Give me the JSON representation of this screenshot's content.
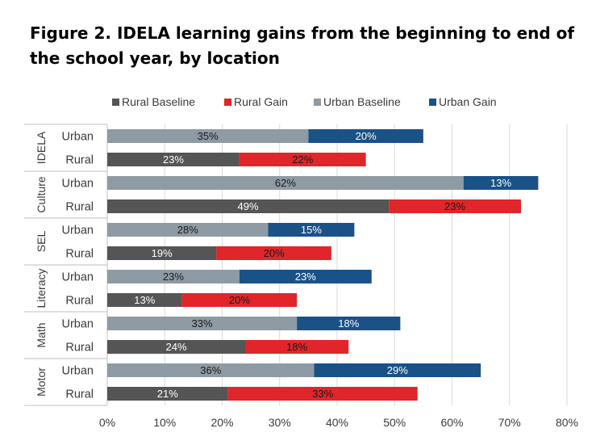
{
  "title": "Figure 2. IDELA learning gains from the beginning to end of the school year, by  location",
  "chart_data": {
    "type": "bar",
    "orientation": "horizontal",
    "stacked": true,
    "xlim": [
      0,
      80
    ],
    "x_ticks": [
      "0%",
      "10%",
      "20%",
      "30%",
      "40%",
      "50%",
      "60%",
      "70%",
      "80%"
    ],
    "grid": true,
    "legend_position": "top",
    "legend": [
      {
        "name": "Rural Baseline",
        "color": "#555555"
      },
      {
        "name": "Rural Gain",
        "color": "#e0262a"
      },
      {
        "name": "Urban Baseline",
        "color": "#8e9aa4"
      },
      {
        "name": "Urban Gain",
        "color": "#1a5187"
      }
    ],
    "groups": [
      {
        "name": "IDELA",
        "rows": [
          {
            "label": "Urban",
            "baseline": 35,
            "gain": 20,
            "baseline_label": "35%",
            "gain_label": "20%"
          },
          {
            "label": "Rural",
            "baseline": 23,
            "gain": 22,
            "baseline_label": "23%",
            "gain_label": "22%"
          }
        ]
      },
      {
        "name": "Culture",
        "rows": [
          {
            "label": "Urban",
            "baseline": 62,
            "gain": 13,
            "baseline_label": "62%",
            "gain_label": "13%"
          },
          {
            "label": "Rural",
            "baseline": 49,
            "gain": 23,
            "baseline_label": "49%",
            "gain_label": "23%"
          }
        ]
      },
      {
        "name": "SEL",
        "rows": [
          {
            "label": "Urban",
            "baseline": 28,
            "gain": 15,
            "baseline_label": "28%",
            "gain_label": "15%"
          },
          {
            "label": "Rural",
            "baseline": 19,
            "gain": 20,
            "baseline_label": "19%",
            "gain_label": "20%"
          }
        ]
      },
      {
        "name": "Literacy",
        "rows": [
          {
            "label": "Urban",
            "baseline": 23,
            "gain": 23,
            "baseline_label": "23%",
            "gain_label": "23%"
          },
          {
            "label": "Rural",
            "baseline": 13,
            "gain": 20,
            "baseline_label": "13%",
            "gain_label": "20%"
          }
        ]
      },
      {
        "name": "Math",
        "rows": [
          {
            "label": "Urban",
            "baseline": 33,
            "gain": 18,
            "baseline_label": "33%",
            "gain_label": "18%"
          },
          {
            "label": "Rural",
            "baseline": 24,
            "gain": 18,
            "baseline_label": "24%",
            "gain_label": "18%"
          }
        ]
      },
      {
        "name": "Motor",
        "rows": [
          {
            "label": "Urban",
            "baseline": 36,
            "gain": 29,
            "baseline_label": "36%",
            "gain_label": "29%"
          },
          {
            "label": "Rural",
            "baseline": 21,
            "gain": 33,
            "baseline_label": "21%",
            "gain_label": "33%"
          }
        ]
      }
    ]
  }
}
